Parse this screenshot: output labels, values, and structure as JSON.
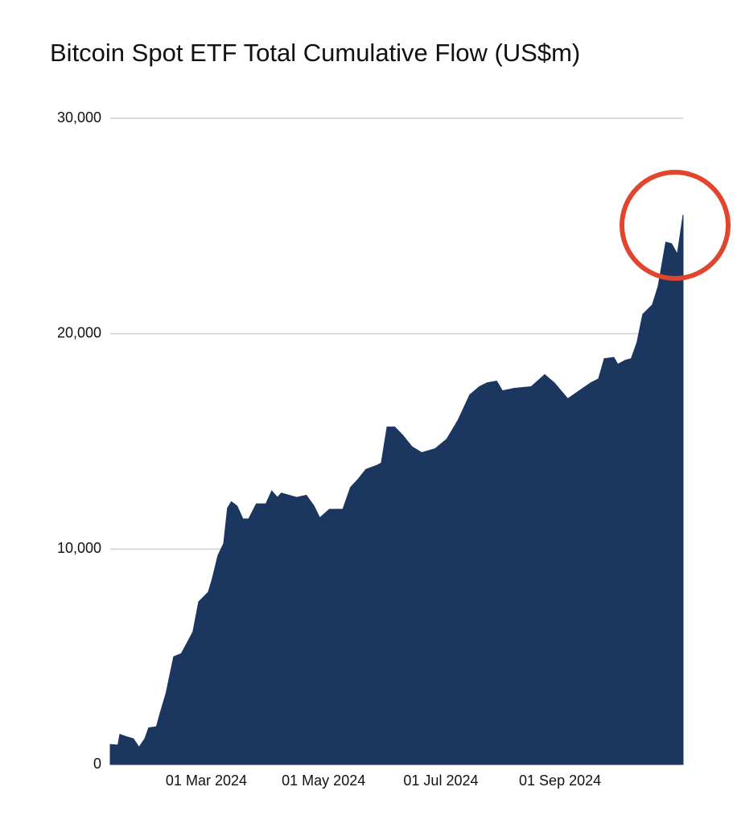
{
  "chart_data": {
    "type": "area",
    "title": "Bitcoin Spot ETF Total Cumulative Flow (US$m)",
    "color": "#1b375f",
    "grid": true,
    "x": [
      "2024-01-11",
      "2024-01-15",
      "2024-01-16",
      "2024-01-19",
      "2024-01-23",
      "2024-01-26",
      "2024-01-29",
      "2024-01-31",
      "2024-02-04",
      "2024-02-06",
      "2024-02-09",
      "2024-02-13",
      "2024-02-17",
      "2024-02-23",
      "2024-02-26",
      "2024-03-02",
      "2024-03-04",
      "2024-03-07",
      "2024-03-10",
      "2024-03-12",
      "2024-03-14",
      "2024-03-17",
      "2024-03-20",
      "2024-03-23",
      "2024-03-27",
      "2024-04-01",
      "2024-04-04",
      "2024-04-07",
      "2024-04-09",
      "2024-04-17",
      "2024-04-22",
      "2024-04-26",
      "2024-04-29",
      "2024-05-04",
      "2024-05-11",
      "2024-05-15",
      "2024-05-19",
      "2024-05-23",
      "2024-05-29",
      "2024-05-31",
      "2024-06-03",
      "2024-06-07",
      "2024-06-11",
      "2024-06-16",
      "2024-06-21",
      "2024-06-28",
      "2024-07-04",
      "2024-07-10",
      "2024-07-16",
      "2024-07-21",
      "2024-07-25",
      "2024-07-30",
      "2024-08-02",
      "2024-08-08",
      "2024-08-17",
      "2024-08-24",
      "2024-08-29",
      "2024-09-05",
      "2024-09-11",
      "2024-09-17",
      "2024-09-21",
      "2024-09-24",
      "2024-09-29",
      "2024-10-01",
      "2024-10-05",
      "2024-10-08",
      "2024-10-11",
      "2024-10-14",
      "2024-10-19",
      "2024-10-22",
      "2024-10-26",
      "2024-10-29",
      "2024-11-01",
      "2024-11-04"
    ],
    "values": [
      930,
      900,
      1400,
      1300,
      1200,
      800,
      1200,
      1700,
      1750,
      2400,
      3300,
      5000,
      5150,
      6150,
      7550,
      8000,
      8600,
      9700,
      10260,
      11900,
      12200,
      12000,
      11400,
      11400,
      12100,
      12100,
      12700,
      12400,
      12600,
      12400,
      12500,
      12000,
      11450,
      11850,
      11850,
      12870,
      13250,
      13700,
      13900,
      14000,
      15670,
      15670,
      15300,
      14750,
      14480,
      14660,
      15100,
      16000,
      17160,
      17540,
      17720,
      17800,
      17350,
      17460,
      17540,
      18100,
      17720,
      16980,
      17350,
      17720,
      17900,
      18840,
      18900,
      18580,
      18770,
      18840,
      19590,
      20900,
      21340,
      22200,
      24250,
      24180,
      23700,
      25520
    ],
    "xlim": [
      "2024-01-11",
      "2024-11-04"
    ],
    "xticks": [
      {
        "value": "2024-03-01",
        "label": "01 Mar 2024"
      },
      {
        "value": "2024-05-01",
        "label": "01 May 2024"
      },
      {
        "value": "2024-07-01",
        "label": "01 Jul 2024"
      },
      {
        "value": "2024-09-01",
        "label": "01 Sep 2024"
      }
    ],
    "ylim": [
      0,
      30000
    ],
    "yticks": [
      0,
      {
        "value": 10000,
        "label": "10,000"
      },
      {
        "value": 20000,
        "label": "20,000"
      },
      {
        "value": 30000,
        "label": "30,000"
      }
    ]
  }
}
